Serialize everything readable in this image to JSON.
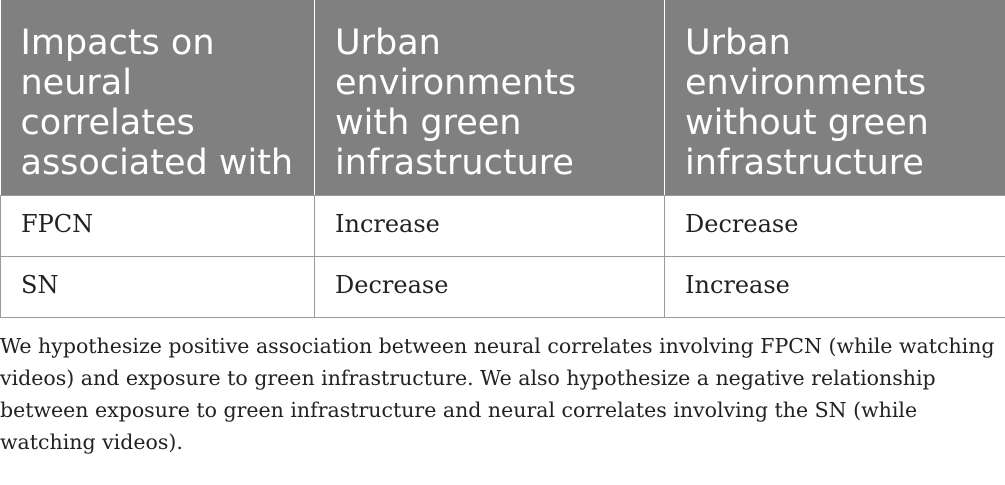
{
  "table": {
    "headers": [
      "Impacts on neural correlates associated with",
      "Urban environments with green infrastructure",
      "Urban environments without green infrastructure"
    ],
    "rows": [
      [
        "FPCN",
        "Increase",
        "Decrease"
      ],
      [
        "SN",
        "Decrease",
        "Increase"
      ]
    ]
  },
  "footnote": "We hypothesize positive association between neural correlates involving FPCN (while watching videos) and exposure to green infrastructure. We also hypothesize a negative relationship between exposure to green infrastructure and neural correlates involving the SN (while watching videos).",
  "colors": {
    "header_bg": "#808080",
    "header_text": "#ffffff",
    "body_text": "#222222",
    "border": "#9a9a9a"
  }
}
